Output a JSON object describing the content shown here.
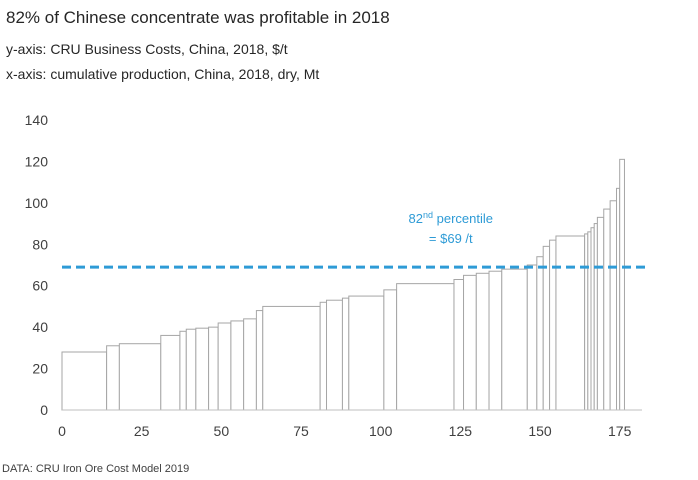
{
  "chart_data": {
    "type": "bar",
    "subtype": "cost-curve",
    "title": "82% of Chinese concentrate was profitable in 2018",
    "ylabel": "y-axis: CRU Business Costs, China, 2018, $/t",
    "xlabel": "x-axis: cumulative production, China, 2018, dry, Mt",
    "xlim": [
      0,
      182
    ],
    "ylim": [
      0,
      140
    ],
    "x_ticks": [
      0,
      25,
      50,
      75,
      100,
      125,
      150,
      175
    ],
    "y_ticks": [
      0,
      20,
      40,
      60,
      80,
      100,
      120,
      140
    ],
    "grid": false,
    "bar_color": "#a6a6a6",
    "steps": [
      {
        "x0": 0,
        "x1": 14,
        "y": 28
      },
      {
        "x0": 14,
        "x1": 18,
        "y": 31
      },
      {
        "x0": 18,
        "x1": 31,
        "y": 32
      },
      {
        "x0": 31,
        "x1": 37,
        "y": 36
      },
      {
        "x0": 37,
        "x1": 39,
        "y": 38
      },
      {
        "x0": 39,
        "x1": 42,
        "y": 39
      },
      {
        "x0": 42,
        "x1": 46,
        "y": 39.5
      },
      {
        "x0": 46,
        "x1": 49,
        "y": 40
      },
      {
        "x0": 49,
        "x1": 53,
        "y": 42
      },
      {
        "x0": 53,
        "x1": 57,
        "y": 43
      },
      {
        "x0": 57,
        "x1": 61,
        "y": 44
      },
      {
        "x0": 61,
        "x1": 63,
        "y": 48
      },
      {
        "x0": 63,
        "x1": 81,
        "y": 50
      },
      {
        "x0": 81,
        "x1": 83,
        "y": 52
      },
      {
        "x0": 83,
        "x1": 88,
        "y": 53
      },
      {
        "x0": 88,
        "x1": 90,
        "y": 54
      },
      {
        "x0": 90,
        "x1": 101,
        "y": 55
      },
      {
        "x0": 101,
        "x1": 105,
        "y": 58
      },
      {
        "x0": 105,
        "x1": 123,
        "y": 61
      },
      {
        "x0": 123,
        "x1": 126,
        "y": 63
      },
      {
        "x0": 126,
        "x1": 130,
        "y": 65
      },
      {
        "x0": 130,
        "x1": 134,
        "y": 66
      },
      {
        "x0": 134,
        "x1": 138,
        "y": 67
      },
      {
        "x0": 138,
        "x1": 146,
        "y": 68
      },
      {
        "x0": 146,
        "x1": 149,
        "y": 70
      },
      {
        "x0": 149,
        "x1": 151,
        "y": 74
      },
      {
        "x0": 151,
        "x1": 153,
        "y": 79
      },
      {
        "x0": 153,
        "x1": 155,
        "y": 82
      },
      {
        "x0": 155,
        "x1": 164,
        "y": 84
      },
      {
        "x0": 164,
        "x1": 165,
        "y": 85
      },
      {
        "x0": 165,
        "x1": 166,
        "y": 86
      },
      {
        "x0": 166,
        "x1": 167,
        "y": 88
      },
      {
        "x0": 167,
        "x1": 168,
        "y": 90
      },
      {
        "x0": 168,
        "x1": 170,
        "y": 93
      },
      {
        "x0": 170,
        "x1": 172,
        "y": 97
      },
      {
        "x0": 172,
        "x1": 174,
        "y": 101
      },
      {
        "x0": 174,
        "x1": 175,
        "y": 107
      },
      {
        "x0": 175,
        "x1": 176.5,
        "y": 121
      }
    ],
    "reference_line": {
      "y": 69,
      "color": "#2e9bd6",
      "label_line1": "82",
      "label_sup": "nd",
      "label_line1_rest": " percentile",
      "label_line2": "= $69 /t"
    }
  },
  "source": "DATA: CRU Iron Ore Cost Model 2019"
}
